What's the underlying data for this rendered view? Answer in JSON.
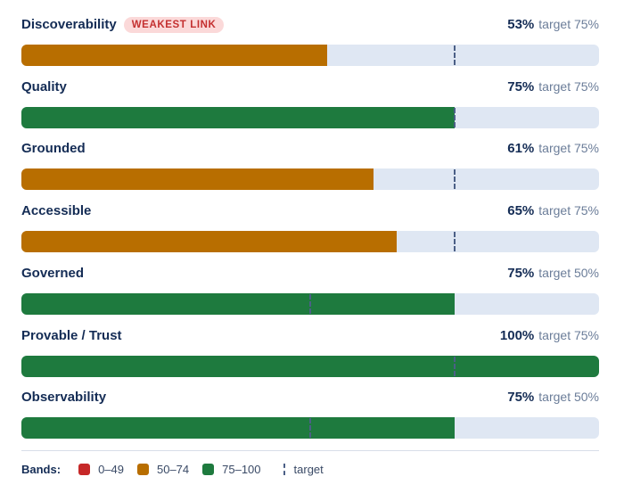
{
  "chart_data": {
    "type": "bar",
    "orientation": "horizontal",
    "xlim": [
      0,
      100
    ],
    "categories": [
      "Discoverability",
      "Quality",
      "Grounded",
      "Accessible",
      "Governed",
      "Provable / Trust",
      "Observability"
    ],
    "values": [
      53,
      75,
      61,
      65,
      75,
      100,
      75
    ],
    "targets": [
      75,
      75,
      75,
      75,
      50,
      75,
      50
    ],
    "value_labels": [
      "53%",
      "75%",
      "61%",
      "65%",
      "75%",
      "100%",
      "75%"
    ],
    "target_labels": [
      "target 75%",
      "target 75%",
      "target 75%",
      "target 75%",
      "target 50%",
      "target 75%",
      "target 50%"
    ],
    "annotations": [
      {
        "category": "Discoverability",
        "text": "WEAKEST LINK"
      }
    ],
    "legend": {
      "title": "Bands:",
      "placement": "bottom",
      "items": [
        {
          "label": "0–49",
          "color": "#c62828",
          "range": [
            0,
            49
          ]
        },
        {
          "label": "50–74",
          "color": "#b86e00",
          "range": [
            50,
            74
          ]
        },
        {
          "label": "75–100",
          "color": "#1e7a3e",
          "range": [
            75,
            100
          ]
        }
      ],
      "target_label": "target"
    },
    "colors": {
      "track": "#dfe7f3",
      "marker": "#4b5f86"
    }
  }
}
